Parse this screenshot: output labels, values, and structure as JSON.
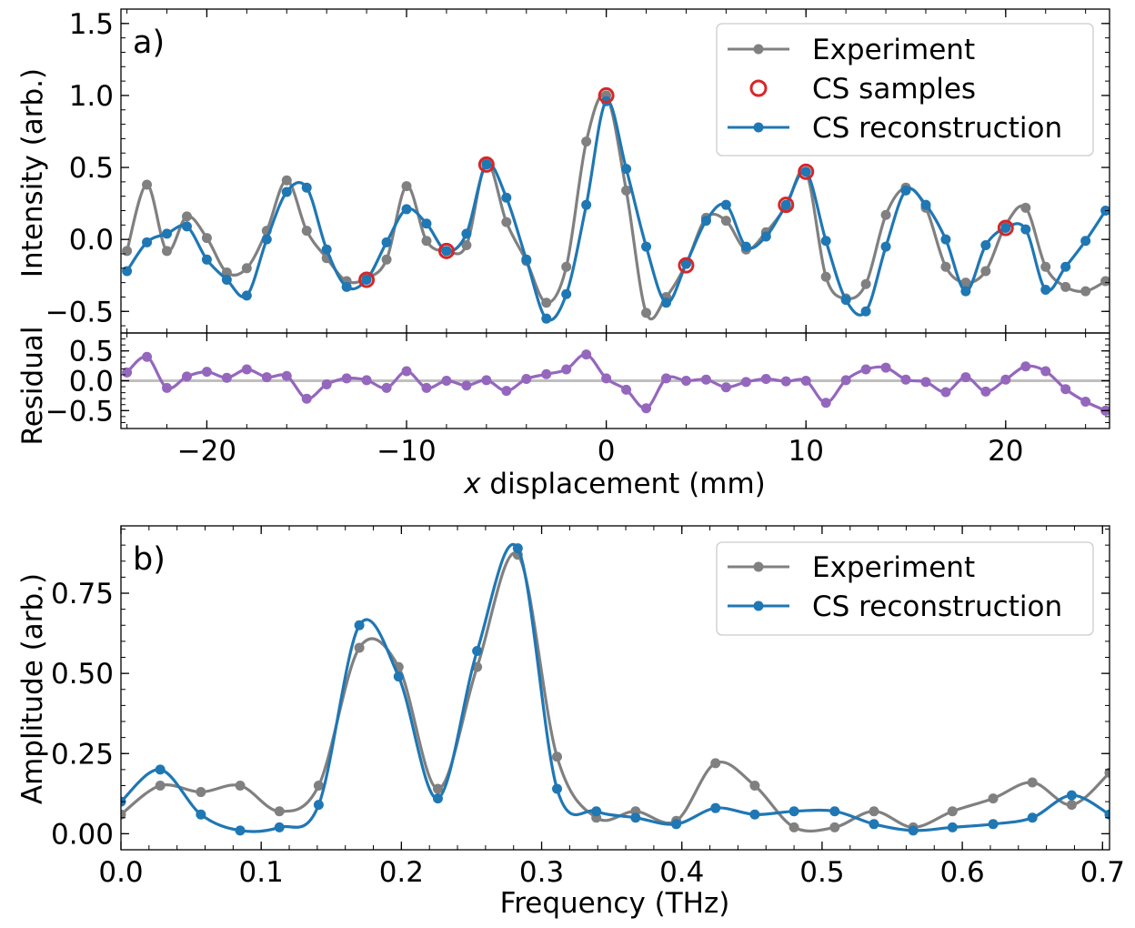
{
  "chart_data": [
    {
      "panel": "a)",
      "type": "line",
      "xlabel_var": "x",
      "xlabel_rest": " displacement (mm)",
      "ylabel": "Intensity (arb.)",
      "xlim": [
        -24.3,
        25.2
      ],
      "ylim": [
        -0.65,
        1.6
      ],
      "xticks": [
        -20,
        -10,
        0,
        10,
        20
      ],
      "xtick_labels": [
        "−20",
        "−10",
        "0",
        "10",
        "20"
      ],
      "yticks": [
        -0.5,
        0.0,
        0.5,
        1.0,
        1.5
      ],
      "ytick_labels": [
        "−0.5",
        "0.0",
        "0.5",
        "1.0",
        "1.5"
      ],
      "legend": [
        "Experiment",
        "CS samples",
        "CS reconstruction"
      ],
      "legend_position": "top-right",
      "colors": {
        "experiment": "#808080",
        "samples": "#d62728",
        "reconstruction": "#1f77b4"
      },
      "series": [
        {
          "name": "Experiment",
          "color": "#808080",
          "x": [
            -24,
            -23,
            -22,
            -21,
            -20,
            -19,
            -18,
            -17,
            -16,
            -15,
            -14,
            -13,
            -12,
            -11,
            -10,
            -9,
            -8,
            -7,
            -6,
            -5,
            -4,
            -3,
            -2,
            -1,
            0,
            1,
            2,
            3,
            4,
            5,
            6,
            7,
            8,
            9,
            10,
            11,
            12,
            13,
            14,
            15,
            16,
            17,
            18,
            19,
            20,
            21,
            22,
            23,
            24,
            25
          ],
          "y": [
            -0.08,
            0.38,
            -0.08,
            0.16,
            0.01,
            -0.23,
            -0.2,
            0.06,
            0.41,
            0.06,
            -0.13,
            -0.29,
            -0.27,
            -0.14,
            0.37,
            -0.01,
            -0.08,
            -0.04,
            0.53,
            0.12,
            -0.15,
            -0.44,
            -0.19,
            0.68,
            1.0,
            0.34,
            -0.51,
            -0.4,
            -0.17,
            0.15,
            0.13,
            -0.07,
            0.05,
            0.23,
            0.47,
            -0.26,
            -0.41,
            -0.31,
            0.17,
            0.36,
            0.22,
            -0.19,
            -0.3,
            -0.22,
            0.1,
            0.22,
            -0.19,
            -0.33,
            -0.36,
            -0.29
          ]
        },
        {
          "name": "CS samples",
          "color": "#d62728",
          "x": [
            -12,
            -8,
            -6,
            0,
            4,
            9,
            10,
            20
          ],
          "y": [
            -0.28,
            -0.08,
            0.52,
            1.0,
            -0.18,
            0.24,
            0.47,
            0.08
          ]
        },
        {
          "name": "CS reconstruction",
          "color": "#1f77b4",
          "x": [
            -24,
            -23,
            -22,
            -21,
            -20,
            -19,
            -18,
            -17,
            -16,
            -15,
            -14,
            -13,
            -12,
            -11,
            -10,
            -9,
            -8,
            -7,
            -6,
            -5,
            -4,
            -3,
            -2,
            -1,
            0,
            1,
            2,
            3,
            4,
            5,
            6,
            7,
            8,
            9,
            10,
            11,
            12,
            13,
            14,
            15,
            16,
            17,
            18,
            19,
            20,
            21,
            22,
            23,
            24,
            25
          ],
          "y": [
            -0.22,
            -0.02,
            0.04,
            0.09,
            -0.14,
            -0.28,
            -0.39,
            0.0,
            0.33,
            0.36,
            -0.07,
            -0.33,
            -0.28,
            -0.02,
            0.21,
            0.11,
            -0.08,
            0.04,
            0.52,
            0.29,
            -0.14,
            -0.55,
            -0.38,
            0.24,
            0.96,
            0.49,
            -0.05,
            -0.44,
            -0.17,
            0.13,
            0.24,
            -0.05,
            0.02,
            0.24,
            0.47,
            -0.01,
            -0.42,
            -0.5,
            -0.05,
            0.34,
            0.24,
            0.0,
            -0.36,
            -0.04,
            0.08,
            0.07,
            -0.35,
            -0.19,
            -0.01,
            0.2
          ]
        }
      ]
    },
    {
      "panel": "residual",
      "type": "line",
      "ylabel": "Residual",
      "xlim": [
        -24.3,
        25.2
      ],
      "ylim": [
        -0.8,
        0.8
      ],
      "yticks": [
        -0.5,
        0.0,
        0.5
      ],
      "ytick_labels": [
        "−0.5",
        "0.0",
        "0.5"
      ],
      "colors": {
        "residual": "#9467bd",
        "zero_line": "#bfbfbf"
      },
      "series": [
        {
          "color": "#9467bd",
          "x": [
            -24,
            -23,
            -22,
            -21,
            -20,
            -19,
            -18,
            -17,
            -16,
            -15,
            -14,
            -13,
            -12,
            -11,
            -10,
            -9,
            -8,
            -7,
            -6,
            -5,
            -4,
            -3,
            -2,
            -1,
            0,
            1,
            2,
            3,
            4,
            5,
            6,
            7,
            8,
            9,
            10,
            11,
            12,
            13,
            14,
            15,
            16,
            17,
            18,
            19,
            20,
            21,
            22,
            23,
            24,
            25
          ],
          "y": [
            0.14,
            0.4,
            -0.12,
            0.07,
            0.15,
            0.05,
            0.19,
            0.06,
            0.08,
            -0.3,
            -0.06,
            0.04,
            0.01,
            -0.12,
            0.16,
            -0.12,
            0.0,
            -0.08,
            0.01,
            -0.17,
            0.03,
            0.11,
            0.19,
            0.44,
            0.04,
            -0.15,
            -0.46,
            0.04,
            0.0,
            0.02,
            -0.11,
            -0.02,
            0.03,
            -0.01,
            0.0,
            -0.37,
            0.01,
            0.19,
            0.22,
            0.02,
            -0.02,
            -0.19,
            0.06,
            -0.18,
            0.02,
            0.24,
            0.16,
            -0.14,
            -0.35,
            -0.5
          ]
        }
      ]
    },
    {
      "panel": "b)",
      "type": "line",
      "xlabel": "Frequency (THz)",
      "ylabel": "Amplitude (arb.)",
      "xlim": [
        0.0,
        0.705
      ],
      "ylim": [
        -0.05,
        0.96
      ],
      "xticks": [
        0.0,
        0.1,
        0.2,
        0.3,
        0.4,
        0.5,
        0.6,
        0.7
      ],
      "xtick_labels": [
        "0.0",
        "0.1",
        "0.2",
        "0.3",
        "0.4",
        "0.5",
        "0.6",
        "0.7"
      ],
      "yticks": [
        0.0,
        0.25,
        0.5,
        0.75
      ],
      "ytick_labels": [
        "0.00",
        "0.25",
        "0.50",
        "0.75"
      ],
      "legend": [
        "Experiment",
        "CS reconstruction"
      ],
      "legend_position": "top-right",
      "series": [
        {
          "name": "Experiment",
          "color": "#808080",
          "x": [
            0.0,
            0.028,
            0.057,
            0.085,
            0.113,
            0.141,
            0.17,
            0.198,
            0.226,
            0.254,
            0.283,
            0.311,
            0.339,
            0.367,
            0.396,
            0.424,
            0.452,
            0.48,
            0.509,
            0.537,
            0.565,
            0.593,
            0.622,
            0.65,
            0.678,
            0.705
          ],
          "y": [
            0.06,
            0.15,
            0.13,
            0.15,
            0.07,
            0.15,
            0.58,
            0.52,
            0.14,
            0.52,
            0.87,
            0.24,
            0.05,
            0.07,
            0.04,
            0.22,
            0.15,
            0.02,
            0.02,
            0.07,
            0.02,
            0.07,
            0.11,
            0.16,
            0.09,
            0.19
          ]
        },
        {
          "name": "CS reconstruction",
          "color": "#1f77b4",
          "x": [
            0.0,
            0.028,
            0.057,
            0.085,
            0.113,
            0.141,
            0.17,
            0.198,
            0.226,
            0.254,
            0.283,
            0.311,
            0.339,
            0.367,
            0.396,
            0.424,
            0.452,
            0.48,
            0.509,
            0.537,
            0.565,
            0.593,
            0.622,
            0.65,
            0.678,
            0.705
          ],
          "y": [
            0.1,
            0.2,
            0.06,
            0.01,
            0.02,
            0.09,
            0.65,
            0.49,
            0.11,
            0.57,
            0.89,
            0.14,
            0.07,
            0.05,
            0.03,
            0.08,
            0.06,
            0.07,
            0.07,
            0.03,
            0.01,
            0.02,
            0.03,
            0.05,
            0.12,
            0.06
          ]
        }
      ]
    }
  ]
}
